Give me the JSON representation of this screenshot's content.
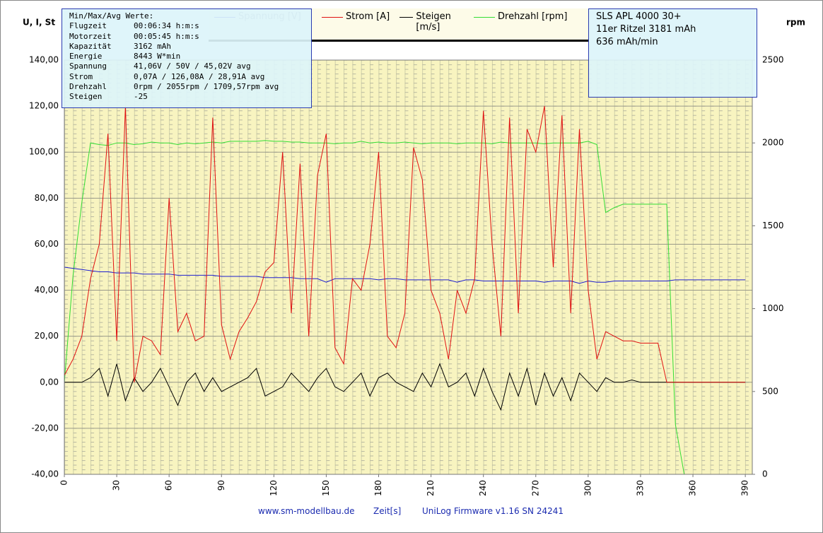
{
  "chart_data": {
    "type": "line",
    "ylabel": "U, I, St",
    "y2label": "rpm",
    "xlabel": "Zeit[s]",
    "xlim": [
      0,
      394
    ],
    "ylim": [
      -40,
      140
    ],
    "y2lim": [
      0,
      2500
    ],
    "xticks": [
      0,
      30,
      60,
      90,
      120,
      150,
      180,
      210,
      240,
      270,
      300,
      330,
      360,
      390
    ],
    "yticks": [
      {
        "value": -40,
        "label": "-40,00"
      },
      {
        "value": -20,
        "label": "-20,00"
      },
      {
        "value": 0,
        "label": "0,00"
      },
      {
        "value": 20,
        "label": "20,00"
      },
      {
        "value": 40,
        "label": "40,00"
      },
      {
        "value": 60,
        "label": "60,00"
      },
      {
        "value": 80,
        "label": "80,00"
      },
      {
        "value": 100,
        "label": "100,00"
      },
      {
        "value": 120,
        "label": "120,00"
      },
      {
        "value": 140,
        "label": "140,00"
      }
    ],
    "y2ticks": [
      0,
      500,
      1000,
      1500,
      2000,
      2500
    ],
    "grid": true,
    "x": [
      0,
      5,
      10,
      15,
      20,
      25,
      30,
      35,
      40,
      45,
      50,
      55,
      60,
      65,
      70,
      75,
      80,
      85,
      90,
      95,
      100,
      105,
      110,
      115,
      120,
      125,
      130,
      135,
      140,
      145,
      150,
      155,
      160,
      165,
      170,
      175,
      180,
      185,
      190,
      195,
      200,
      205,
      210,
      215,
      220,
      225,
      230,
      235,
      240,
      245,
      250,
      255,
      260,
      265,
      270,
      275,
      280,
      285,
      290,
      295,
      300,
      305,
      310,
      315,
      320,
      325,
      330,
      335,
      340,
      345,
      350,
      355,
      360,
      365,
      370,
      375,
      380,
      385,
      390
    ],
    "series": [
      {
        "name": "Spannung [V]",
        "color": "#1f1fd0",
        "values": [
          50,
          49.5,
          49,
          48.5,
          48,
          48,
          47.5,
          47.5,
          47.5,
          47,
          47,
          47,
          47,
          46.5,
          46.5,
          46.5,
          46.5,
          46.5,
          46,
          46,
          46,
          46,
          46,
          45.5,
          45.5,
          45.5,
          45.5,
          45,
          45,
          45,
          43.5,
          45,
          45,
          45,
          45,
          45,
          44.5,
          45,
          45,
          44.5,
          44.5,
          44.5,
          44.5,
          44.5,
          44.5,
          43.5,
          44.5,
          44.5,
          44,
          44,
          44,
          44,
          44,
          44,
          44,
          43.5,
          44,
          44,
          44,
          43,
          44,
          43.5,
          43.5,
          44,
          44,
          44,
          44,
          44,
          44,
          44,
          44.5,
          44.5,
          44.5,
          44.5,
          44.5,
          44.5,
          44.5,
          44.5,
          44.5
        ]
      },
      {
        "name": "Strom [A]",
        "color": "#e01010",
        "values": [
          3,
          10,
          20,
          45,
          60,
          108,
          18,
          120,
          0,
          20,
          18,
          12,
          80,
          22,
          30,
          18,
          20,
          115,
          25,
          10,
          22,
          28,
          35,
          48,
          52,
          100,
          30,
          95,
          20,
          90,
          108,
          15,
          8,
          45,
          40,
          60,
          100,
          20,
          15,
          30,
          102,
          88,
          40,
          30,
          10,
          40,
          30,
          45,
          118,
          60,
          20,
          115,
          30,
          110,
          100,
          120,
          50,
          116,
          30,
          110,
          40,
          10,
          22,
          20,
          18,
          18,
          17,
          17,
          17,
          0,
          0,
          0,
          0,
          0,
          0,
          0,
          0,
          0,
          0
        ]
      },
      {
        "name": "Steigen [m/s]",
        "color": "#000000",
        "values": [
          0,
          0,
          0,
          2,
          6,
          -6,
          8,
          -8,
          2,
          -4,
          0,
          6,
          -2,
          -10,
          0,
          4,
          -4,
          2,
          -4,
          -2,
          0,
          2,
          6,
          -6,
          -4,
          -2,
          4,
          0,
          -4,
          2,
          6,
          -2,
          -4,
          0,
          4,
          -6,
          2,
          4,
          0,
          -2,
          -4,
          4,
          -2,
          8,
          -2,
          0,
          4,
          -6,
          6,
          -4,
          -12,
          4,
          -6,
          6,
          -10,
          4,
          -6,
          2,
          -8,
          4,
          0,
          -4,
          2,
          0,
          0,
          1,
          0,
          0,
          0,
          0,
          0,
          0,
          0,
          0,
          0,
          0,
          0,
          0,
          0
        ]
      },
      {
        "name": "Drehzahl [rpm]",
        "color": "#33dd33",
        "axis": "y2",
        "values": [
          555,
          1200,
          1640,
          2000,
          1990,
          1985,
          2000,
          2000,
          1990,
          1995,
          2005,
          2000,
          2000,
          1990,
          2000,
          1995,
          2000,
          2005,
          2000,
          2010,
          2010,
          2010,
          2010,
          2015,
          2010,
          2010,
          2005,
          2005,
          2000,
          2000,
          2000,
          1995,
          2000,
          2000,
          2010,
          2000,
          2005,
          2000,
          2000,
          2005,
          2000,
          1995,
          2000,
          2000,
          2000,
          1995,
          2000,
          2000,
          2000,
          1995,
          2005,
          2000,
          2000,
          2000,
          2000,
          1995,
          2000,
          2000,
          2000,
          2000,
          2010,
          1990,
          1580,
          1610,
          1630,
          1630,
          1630,
          1630,
          1630,
          1630,
          300,
          0,
          0,
          0,
          0,
          0,
          0,
          0,
          0
        ]
      }
    ],
    "info_box": {
      "title": "Min/Max/Avg Werte:",
      "rows": [
        [
          "Flugzeit",
          "00:06:34 h:m:s"
        ],
        [
          "Motorzeit",
          "00:05:45 h:m:s"
        ],
        [
          "Kapazität",
          "3162 mAh"
        ],
        [
          "Energie",
          "8443 W*min"
        ],
        [
          "Spannung",
          "41,06V / 50V / 45,02V avg"
        ],
        [
          "Strom",
          "0,07A / 126,08A / 28,91A avg"
        ],
        [
          "Drehzahl",
          "0rpm / 2055rpm / 1709,57rpm avg"
        ],
        [
          "Steigen",
          "-25"
        ]
      ]
    },
    "model_box": [
      "SLS APL 4000 30+",
      "11er Ritzel 3181 mAh",
      "636 mAh/min"
    ],
    "footer": [
      "www.sm-modellbau.de",
      "UniLog Firmware v1.16 SN 24241"
    ]
  }
}
